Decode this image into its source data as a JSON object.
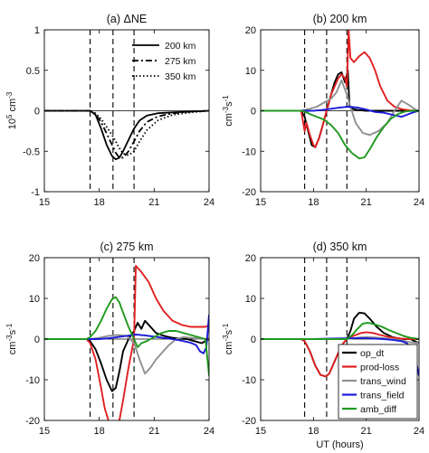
{
  "chart_data": [
    {
      "type": "line",
      "panel": "a",
      "title": "(a) ΔNE",
      "ylabel_parts": [
        "10",
        "5",
        " cm",
        "-3"
      ],
      "xlabel": "",
      "xlim": [
        15,
        24
      ],
      "ylim": [
        -1,
        1
      ],
      "xticks": [
        15,
        18,
        21,
        24
      ],
      "yticks": [
        -1,
        -0.5,
        0,
        0.5,
        1
      ],
      "ytick_labels": [
        "-1",
        "-0.5",
        "0",
        "0.5",
        "1"
      ],
      "vlines": [
        17.5,
        18.75,
        19.9
      ],
      "legend": {
        "position": "top-right",
        "entries": [
          "200 km",
          "275 km",
          "350 km"
        ]
      },
      "series": [
        {
          "name": "200 km",
          "style": "solid",
          "color": "#000000",
          "x": [
            15,
            17.5,
            17.8,
            18.1,
            18.4,
            18.7,
            18.9,
            19.1,
            19.3,
            19.6,
            19.9,
            20.2,
            20.6,
            21.2,
            22,
            23,
            24
          ],
          "y": [
            0,
            0,
            -0.05,
            -0.22,
            -0.42,
            -0.56,
            -0.6,
            -0.58,
            -0.5,
            -0.36,
            -0.22,
            -0.12,
            -0.06,
            -0.03,
            -0.02,
            -0.01,
            0
          ]
        },
        {
          "name": "275 km",
          "style": "dashdot",
          "color": "#000000",
          "x": [
            15,
            17.5,
            17.8,
            18.1,
            18.4,
            18.7,
            18.9,
            19.1,
            19.3,
            19.6,
            19.9,
            20.2,
            20.6,
            21.2,
            22,
            23,
            24
          ],
          "y": [
            0,
            0,
            -0.04,
            -0.14,
            -0.28,
            -0.42,
            -0.52,
            -0.58,
            -0.58,
            -0.5,
            -0.38,
            -0.25,
            -0.14,
            -0.07,
            -0.03,
            -0.01,
            0
          ]
        },
        {
          "name": "350 km",
          "style": "dotted",
          "color": "#000000",
          "x": [
            15,
            17.5,
            17.8,
            18.1,
            18.4,
            18.7,
            18.9,
            19.1,
            19.3,
            19.6,
            19.9,
            20.2,
            20.6,
            21.2,
            22,
            23,
            24
          ],
          "y": [
            0,
            0,
            -0.03,
            -0.1,
            -0.2,
            -0.3,
            -0.38,
            -0.46,
            -0.53,
            -0.55,
            -0.5,
            -0.38,
            -0.24,
            -0.12,
            -0.05,
            -0.02,
            0
          ]
        }
      ]
    },
    {
      "type": "line",
      "panel": "b",
      "title": "(b) 200 km",
      "ylabel_parts": [
        "cm",
        "-3",
        "s",
        "-1"
      ],
      "xlabel": "",
      "xlim": [
        15,
        24
      ],
      "ylim": [
        -20,
        20
      ],
      "xticks": [
        15,
        18,
        21,
        24
      ],
      "yticks": [
        -20,
        -10,
        0,
        10,
        20
      ],
      "ytick_labels": [
        "-20",
        "-10",
        "0",
        "10",
        "20"
      ],
      "vlines": [
        17.5,
        18.75,
        19.9
      ],
      "series": [
        {
          "name": "op_dt",
          "color": "#000000",
          "x": [
            15,
            17.3,
            17.5,
            17.7,
            17.9,
            18.1,
            18.3,
            18.5,
            18.75,
            19.0,
            19.2,
            19.4,
            19.6,
            19.8,
            19.95,
            20.05,
            20.2,
            20.5,
            21,
            22,
            23,
            24
          ],
          "y": [
            0,
            0,
            -1.5,
            -5,
            -8.5,
            -9,
            -7,
            -4,
            0,
            4,
            7,
            9,
            9.5,
            7,
            10,
            1,
            0.5,
            0.2,
            0,
            0,
            0,
            0
          ]
        },
        {
          "name": "prod-loss",
          "color": "#e02020",
          "x": [
            15,
            17.3,
            17.5,
            17.6,
            17.8,
            18.0,
            18.1,
            18.3,
            18.5,
            18.75,
            19.0,
            19.2,
            19.4,
            19.6,
            19.8,
            19.9,
            20.0,
            20.1,
            20.3,
            20.6,
            20.9,
            21.2,
            21.5,
            21.8,
            22.2,
            22.6,
            23,
            23.5,
            24
          ],
          "y": [
            0,
            0,
            -5,
            -3,
            -6,
            -8.5,
            -9,
            -7,
            -4,
            0,
            4,
            6,
            8,
            9,
            8,
            6,
            20,
            13,
            12,
            13.5,
            14.5,
            13,
            10,
            6,
            2.5,
            1,
            0.4,
            0.1,
            0
          ]
        },
        {
          "name": "trans_wind",
          "color": "#909090",
          "x": [
            15,
            17.3,
            17.5,
            17.8,
            18.2,
            18.6,
            19.0,
            19.3,
            19.6,
            19.9,
            20.1,
            20.4,
            20.8,
            21.2,
            21.7,
            22.2,
            22.6,
            23,
            23.4,
            23.8,
            24
          ],
          "y": [
            0,
            0,
            0.2,
            0.5,
            1,
            2,
            3,
            4.5,
            7.5,
            4,
            1,
            -3,
            -5.5,
            -6,
            -5,
            -3,
            0,
            2.5,
            1.5,
            0.3,
            0
          ]
        },
        {
          "name": "trans_field",
          "color": "#1a1ad8",
          "x": [
            15,
            18,
            18.5,
            19,
            19.5,
            20,
            20.5,
            21,
            21.5,
            22,
            22.5,
            23,
            23.3,
            23.6,
            24
          ],
          "y": [
            0,
            0,
            0.2,
            0.5,
            0.8,
            1,
            0.8,
            0.3,
            -0.3,
            -0.5,
            -1,
            -1.5,
            -1,
            -0.5,
            0
          ]
        },
        {
          "name": "amb_diff",
          "color": "#1f9a1f",
          "x": [
            15,
            17.3,
            17.5,
            17.8,
            18.2,
            18.6,
            19.0,
            19.4,
            19.8,
            20.2,
            20.6,
            20.9,
            21.2,
            21.6,
            22.0,
            22.4,
            22.8,
            23.2,
            23.6,
            24
          ],
          "y": [
            0,
            0,
            -0.2,
            -0.8,
            -1.5,
            -2.2,
            -3.5,
            -5.5,
            -8.5,
            -10.5,
            -11.8,
            -11.5,
            -9.5,
            -6.5,
            -4,
            -2,
            -0.8,
            -0.2,
            0,
            0
          ]
        }
      ]
    },
    {
      "type": "line",
      "panel": "c",
      "title": "(c) 275 km",
      "ylabel_parts": [
        "cm",
        "-3",
        "s",
        "-1"
      ],
      "xlabel": "",
      "xlim": [
        15,
        24
      ],
      "ylim": [
        -20,
        20
      ],
      "xticks": [
        15,
        18,
        21,
        24
      ],
      "yticks": [
        -20,
        -10,
        0,
        10,
        20
      ],
      "ytick_labels": [
        "-20",
        "-10",
        "0",
        "10",
        "20"
      ],
      "vlines": [
        17.5,
        18.75,
        19.9
      ],
      "series": [
        {
          "name": "op_dt",
          "color": "#000000",
          "x": [
            15,
            17.3,
            17.5,
            17.8,
            18.1,
            18.4,
            18.7,
            18.9,
            19.1,
            19.3,
            19.6,
            19.9,
            20.1,
            20.3,
            20.5,
            20.8,
            21.1,
            21.4,
            21.7,
            22.0,
            22.4,
            22.8,
            23.2,
            23.6,
            24
          ],
          "y": [
            0,
            0,
            -0.5,
            -2.5,
            -6,
            -10,
            -12.8,
            -12,
            -8,
            -3,
            0,
            2,
            4,
            2.5,
            4.5,
            3,
            1.5,
            1,
            0.6,
            0.3,
            0.1,
            0,
            -0.5,
            -1,
            0
          ]
        },
        {
          "name": "prod-loss",
          "color": "#e02020",
          "x": [
            15,
            17.3,
            17.5,
            17.8,
            18.1,
            18.3,
            18.5,
            18.7,
            18.9,
            19.1,
            19.3,
            19.6,
            19.9,
            20.0,
            20.3,
            20.7,
            21.1,
            21.5,
            22.0,
            22.5,
            23,
            23.5,
            23.8,
            24
          ],
          "y": [
            0,
            0,
            -1,
            -5,
            -12,
            -17,
            -20,
            -22,
            -22,
            -20,
            -15,
            -7,
            0,
            18,
            16.5,
            14,
            10,
            7,
            4.5,
            3.5,
            3,
            3,
            3,
            3.5
          ]
        },
        {
          "name": "trans_wind",
          "color": "#909090",
          "x": [
            15,
            17.5,
            18,
            18.5,
            19,
            19.5,
            19.9,
            20.2,
            20.5,
            20.8,
            21.1,
            21.4,
            21.8,
            22.2,
            22.6,
            23.0,
            23.5,
            24
          ],
          "y": [
            0,
            0,
            0.3,
            0.8,
            1,
            0.8,
            -1,
            -5,
            -8.5,
            -7,
            -5,
            -3.5,
            -1.5,
            0,
            0.5,
            0.3,
            0.1,
            0
          ]
        },
        {
          "name": "trans_field",
          "color": "#1a1ad8",
          "x": [
            15,
            18,
            18.5,
            19,
            19.5,
            20,
            20.5,
            21,
            21.5,
            22,
            22.5,
            23,
            23.3,
            23.5,
            23.7,
            23.85,
            24
          ],
          "y": [
            0,
            0,
            0.2,
            0.5,
            0.8,
            1.1,
            0.9,
            0.6,
            0.3,
            0,
            -0.4,
            -0.9,
            -1.5,
            -3,
            -3.5,
            -2,
            6
          ]
        },
        {
          "name": "amb_diff",
          "color": "#1f9a1f",
          "x": [
            15,
            17.3,
            17.5,
            17.8,
            18.1,
            18.4,
            18.7,
            18.9,
            19.1,
            19.3,
            19.6,
            19.9,
            20.1,
            20.3,
            20.6,
            21.0,
            21.4,
            21.8,
            22.2,
            22.6,
            23.0,
            23.4,
            23.8,
            24
          ],
          "y": [
            0,
            0,
            0.5,
            2,
            4.5,
            7.5,
            9.8,
            10.3,
            9,
            6.5,
            3,
            0,
            -2,
            -1,
            -0.5,
            0.5,
            1.5,
            2,
            2,
            1.5,
            1,
            0.5,
            0,
            -9
          ]
        }
      ]
    },
    {
      "type": "line",
      "panel": "d",
      "title": "(d) 350 km",
      "ylabel_parts": [
        "cm",
        "-3",
        "s",
        "-1"
      ],
      "xlabel": "UT (hours)",
      "xlim": [
        15,
        24
      ],
      "ylim": [
        -20,
        20
      ],
      "xticks": [
        15,
        18,
        21,
        24
      ],
      "yticks": [
        -20,
        -10,
        0,
        10,
        20
      ],
      "ytick_labels": [
        "-20",
        "-10",
        "0",
        "10",
        "20"
      ],
      "vlines": [
        17.5,
        18.75,
        19.9
      ],
      "legend": {
        "position": "bottom-right",
        "entries": [
          "op_dt",
          "prod-loss",
          "trans_wind",
          "trans_field",
          "amb_diff"
        ]
      },
      "series": [
        {
          "name": "op_dt",
          "color": "#000000",
          "x": [
            15,
            17.3,
            17.5,
            17.8,
            18.1,
            18.4,
            18.7,
            18.9,
            19.1,
            19.4,
            19.7,
            19.9,
            20.1,
            20.3,
            20.6,
            20.9,
            21.2,
            21.6,
            22.0,
            22.5,
            23,
            23.5,
            24
          ],
          "y": [
            0,
            0,
            -0.5,
            -3,
            -6.5,
            -8.8,
            -9.2,
            -8.5,
            -6.5,
            -3.5,
            -1,
            0,
            2,
            5,
            6.5,
            6.3,
            5,
            3,
            1.5,
            0.5,
            0,
            0,
            -1
          ]
        },
        {
          "name": "prod-loss",
          "color": "#e02020",
          "x": [
            15,
            17.3,
            17.5,
            17.8,
            18.1,
            18.4,
            18.7,
            18.9,
            19.1,
            19.4,
            19.7,
            19.9,
            20.1,
            20.4,
            20.7,
            21.0,
            21.4,
            21.8,
            22.2,
            22.6,
            23,
            23.5,
            24
          ],
          "y": [
            0,
            0,
            -0.5,
            -3,
            -6.5,
            -8.8,
            -9.2,
            -8.5,
            -6.5,
            -3.5,
            -1,
            0,
            0.5,
            1,
            1.5,
            1.7,
            1.5,
            1,
            0.6,
            0.3,
            0.1,
            0,
            0
          ]
        },
        {
          "name": "trans_wind",
          "color": "#909090",
          "x": [
            15,
            18,
            19,
            19.9,
            20.3,
            20.6,
            21.0,
            21.5,
            22.0,
            22.5,
            23.0,
            23.5,
            24
          ],
          "y": [
            0,
            0,
            0,
            0,
            0.2,
            0.4,
            0.5,
            0.4,
            0.2,
            0,
            -0.3,
            -0.8,
            -1
          ]
        },
        {
          "name": "trans_field",
          "color": "#1a1ad8",
          "x": [
            15,
            18,
            19,
            20,
            21,
            22,
            22.5,
            23,
            23.3,
            23.6,
            23.8,
            24
          ],
          "y": [
            0,
            0,
            0.1,
            0.2,
            0.2,
            0,
            -0.2,
            -0.5,
            -1,
            -2.5,
            -5,
            -9
          ]
        },
        {
          "name": "amb_diff",
          "color": "#1f9a1f",
          "x": [
            15,
            18,
            19,
            19.9,
            20.2,
            20.5,
            20.8,
            21.1,
            21.5,
            21.9,
            22.3,
            22.7,
            23.1,
            23.5,
            24
          ],
          "y": [
            0,
            0,
            0,
            0,
            1,
            2.5,
            3.8,
            4,
            3.6,
            3,
            2.2,
            1.5,
            0.8,
            0.3,
            0
          ]
        }
      ]
    }
  ]
}
